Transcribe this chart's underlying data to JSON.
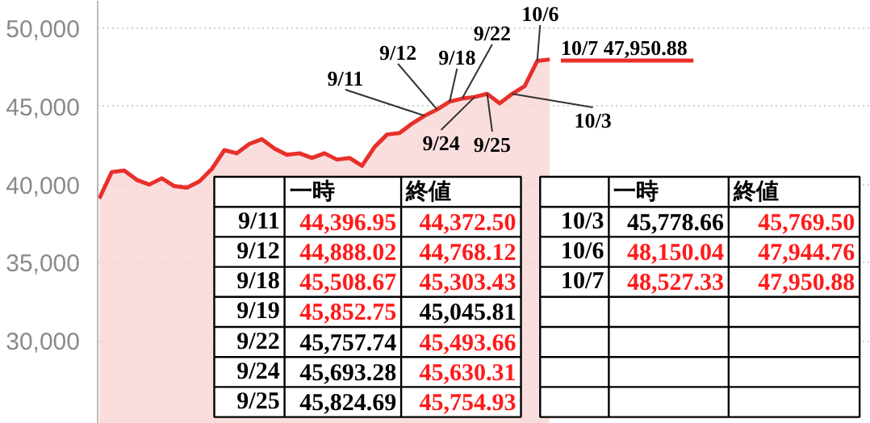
{
  "chart_data": {
    "type": "area",
    "categories": [
      null,
      null,
      null,
      null,
      null,
      null,
      null,
      null,
      null,
      null,
      null,
      null,
      null,
      null,
      null,
      null,
      null,
      null,
      null,
      null,
      null,
      null,
      null,
      null,
      null,
      null,
      null,
      null,
      null,
      null,
      null,
      null,
      null,
      null,
      null,
      null,
      null
    ],
    "series": [
      {
        "color": "#e8302a",
        "values": [
          39100,
          40800,
          40900,
          40300,
          40000,
          40400,
          39900,
          39800,
          40200,
          41000,
          42200,
          42000,
          42600,
          42900,
          42300,
          41900,
          42000,
          41700,
          42000,
          41600,
          41700,
          41200,
          42400,
          43200,
          43300,
          43900,
          44400,
          44800,
          45300,
          45500,
          45600,
          45800,
          45200,
          45800,
          46300,
          47900,
          48000
        ]
      }
    ],
    "ylim": [
      24700,
      51750
    ],
    "yticks": [
      {
        "value": 30000,
        "label": "30,000"
      },
      {
        "value": 35000,
        "label": "35,000"
      },
      {
        "value": 40000,
        "label": "40,000"
      },
      {
        "value": 45000,
        "label": "45,000"
      },
      {
        "value": 50000,
        "label": "50,000"
      }
    ],
    "grid": "y",
    "tick_labels": "y",
    "annotations": [
      "9/11",
      "9/12",
      "9/18",
      "9/22",
      "9/24",
      "9/25",
      "10/3",
      "10/6",
      "10/7 47,950.88",
      "一時",
      "終値",
      "9/11",
      "44,396.95",
      "44,372.50",
      "9/12",
      "44,888.02",
      "44,768.12",
      "9/18",
      "45,508.67",
      "45,303.43",
      "9/19",
      "45,852.75",
      "45,045.81",
      "9/22",
      "45,757.74",
      "45,493.66",
      "9/24",
      "45,693.28",
      "45,630.31",
      "9/25",
      "45,824.69",
      "45,754.93",
      "一時",
      "終値",
      "10/3",
      "45,778.66",
      "45,769.50",
      "10/6",
      "48,150.04",
      "47,944.76",
      "10/7",
      "48,527.33",
      "47,950.88"
    ]
  }
}
